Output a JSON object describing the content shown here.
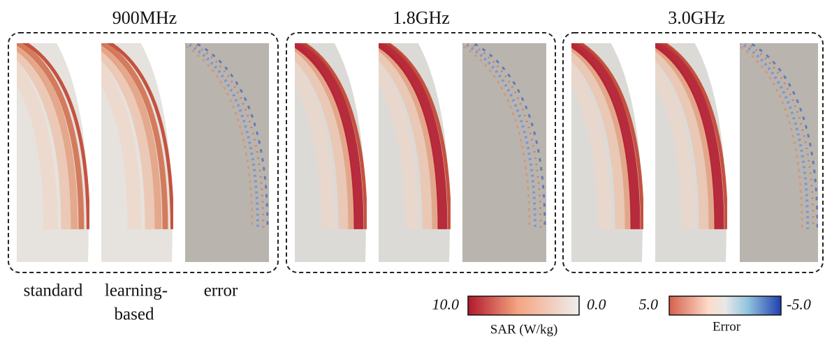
{
  "groups": [
    {
      "title": "900MHz"
    },
    {
      "title": "1.8GHz"
    },
    {
      "title": "3.0GHz"
    }
  ],
  "panel_labels": [
    {
      "lines": [
        "standard"
      ]
    },
    {
      "lines": [
        "learning-",
        "based"
      ]
    },
    {
      "lines": [
        "error"
      ]
    }
  ],
  "colorbars": [
    {
      "max": "10.0",
      "min": "0.0",
      "label": "SAR (W/kg)"
    },
    {
      "max": "5.0",
      "min": "-5.0",
      "label": "Error"
    }
  ]
}
